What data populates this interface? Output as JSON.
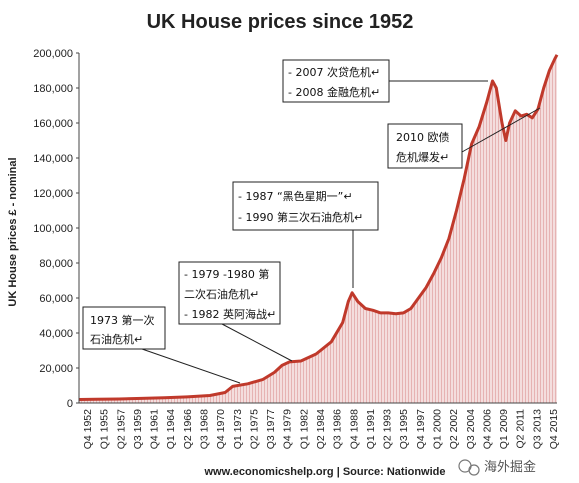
{
  "chart_data": {
    "type": "area",
    "title": "UK House prices since 1952",
    "ylabel": "UK House prices £ - nominal",
    "xlabel": "",
    "ylim": [
      0,
      200000
    ],
    "y_ticks": [
      "0",
      "20,000",
      "40,000",
      "60,000",
      "80,000",
      "100,000",
      "120,000",
      "140,000",
      "160,000",
      "180,000",
      "200,000"
    ],
    "x_ticks": [
      "Q4 1952",
      "Q1 1955",
      "Q2 1957",
      "Q3 1959",
      "Q4 1961",
      "Q1 1964",
      "Q2 1966",
      "Q3 1968",
      "Q4 1970",
      "Q1 1973",
      "Q2 1975",
      "Q3 1977",
      "Q4 1979",
      "Q1 1982",
      "Q2 1984",
      "Q3 1986",
      "Q4 1988",
      "Q1 1991",
      "Q2 1993",
      "Q3 1995",
      "Q4 1997",
      "Q1 2000",
      "Q2 2002",
      "Q3 2004",
      "Q4 2006",
      "Q1 2009",
      "Q2 2011",
      "Q3 2013",
      "Q4 2015"
    ],
    "x": [
      1952.75,
      1955,
      1958,
      1961,
      1964,
      1967,
      1970,
      1972,
      1973,
      1975,
      1977,
      1978.5,
      1979.5,
      1980.5,
      1982,
      1984,
      1986,
      1987.5,
      1988.25,
      1988.75,
      1989.5,
      1990.5,
      1991.5,
      1992.5,
      1993.5,
      1994.5,
      1995.5,
      1996.5,
      1997.5,
      1998.5,
      1999.5,
      2000.5,
      2001.5,
      2002.5,
      2003.5,
      2004.5,
      2005.5,
      2006.5,
      2007.25,
      2007.75,
      2008.5,
      2009,
      2009.5,
      2010.25,
      2011,
      2011.75,
      2012.5,
      2013.25,
      2014,
      2014.75,
      2015.5,
      2015.75
    ],
    "values": [
      2000,
      2100,
      2300,
      2600,
      3000,
      3500,
      4300,
      6000,
      9500,
      11000,
      13500,
      17500,
      21500,
      23500,
      24000,
      28000,
      35000,
      46000,
      58000,
      63000,
      58000,
      54000,
      53000,
      51500,
      51500,
      51000,
      51500,
      54000,
      60000,
      66000,
      74000,
      83000,
      94000,
      110000,
      128000,
      148000,
      158000,
      172000,
      184000,
      180000,
      160000,
      150000,
      160000,
      167000,
      164000,
      165000,
      163000,
      168000,
      180000,
      190000,
      197000,
      199000
    ],
    "annotations": [
      {
        "lines": [
          "1973 第一次",
          "石油危机↵"
        ]
      },
      {
        "lines": [
          "-  1979  -1980 第",
          "二次石油危机↵",
          "- 1982 英阿海战↵"
        ]
      },
      {
        "lines": [
          "- 1987 “黑色星期一”↵",
          "- 1990 第三次石油危机↵"
        ]
      },
      {
        "lines": [
          "- 2007 次贷危机↵",
          "- 2008 金融危机↵"
        ]
      },
      {
        "lines": [
          "2010 欧债",
          "危机爆发↵"
        ]
      }
    ],
    "source": "www.economicshelp.org | Source: Nationwide",
    "grid": false,
    "legend": "none"
  },
  "watermark": "海外掘金",
  "colors": {
    "line": "#c0392b",
    "fill": "#f2d4d4",
    "fill_stripe": "#e8b8b8"
  }
}
